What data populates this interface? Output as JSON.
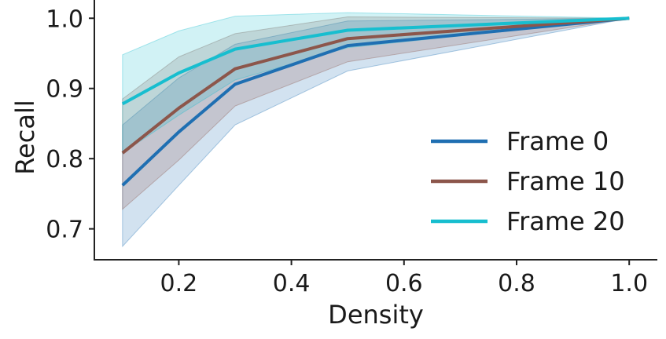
{
  "chart_data": {
    "type": "line",
    "title": "",
    "xlabel": "Density",
    "ylabel": "Recall",
    "xlim": [
      0.05,
      1.05
    ],
    "ylim": [
      0.656,
      1.026
    ],
    "xticks": [
      0.2,
      0.4,
      0.6,
      0.8,
      1.0
    ],
    "xtick_labels": [
      "0.2",
      "0.4",
      "0.6",
      "0.8",
      "1.0"
    ],
    "yticks": [
      0.7,
      0.8,
      0.9,
      1.0
    ],
    "ytick_labels": [
      "0.7",
      "0.8",
      "0.9",
      "1.0"
    ],
    "grid": false,
    "legend_position": "center-right",
    "x": [
      0.1,
      0.2,
      0.3,
      0.5,
      1.0
    ],
    "series": [
      {
        "name": "Frame 0",
        "color": "#1f6fb2",
        "values": [
          0.762,
          0.838,
          0.906,
          0.961,
          1.0
        ],
        "lower": [
          0.675,
          0.762,
          0.848,
          0.925,
          1.0
        ],
        "upper": [
          0.848,
          0.915,
          0.963,
          0.996,
          1.0
        ]
      },
      {
        "name": "Frame 10",
        "color": "#8c564b",
        "values": [
          0.808,
          0.872,
          0.928,
          0.971,
          1.0
        ],
        "lower": [
          0.728,
          0.798,
          0.875,
          0.938,
          1.0
        ],
        "upper": [
          0.885,
          0.945,
          0.978,
          1.002,
          1.0
        ]
      },
      {
        "name": "Frame 20",
        "color": "#17becf",
        "values": [
          0.878,
          0.922,
          0.956,
          0.983,
          1.0
        ],
        "lower": [
          0.808,
          0.862,
          0.912,
          0.958,
          1.0
        ],
        "upper": [
          0.948,
          0.982,
          1.003,
          1.008,
          1.0
        ]
      }
    ]
  }
}
